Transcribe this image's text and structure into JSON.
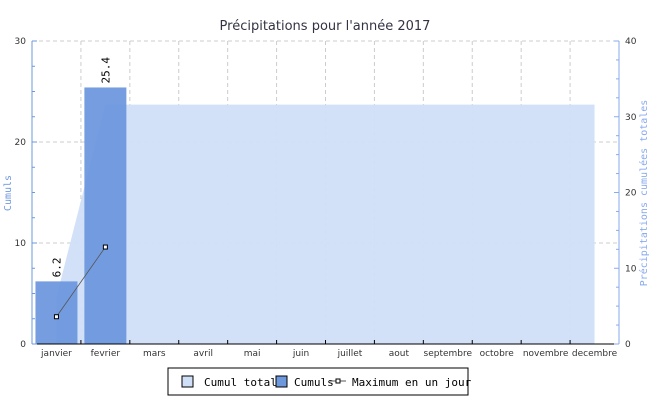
{
  "chart_data": {
    "type": "bar+area+line",
    "title": "Précipitations pour l'année 2017",
    "ylabel": "Cumuls",
    "y2label": "Précipitations cumulées totales",
    "categories": [
      "janvier",
      "fevrier",
      "mars",
      "avril",
      "mai",
      "juin",
      "juillet",
      "aout",
      "septembre",
      "octobre",
      "novembre",
      "decembre"
    ],
    "ylim": [
      0,
      30
    ],
    "y2lim": [
      0,
      40
    ],
    "yticks": [
      0,
      10,
      20,
      30
    ],
    "y2ticks": [
      0,
      10,
      20,
      30,
      40
    ],
    "grid": true,
    "legend_position": "bottom",
    "series": [
      {
        "name": "Cumul total",
        "type": "area",
        "axis": "right",
        "color": "#d0dff8",
        "values": [
          6.2,
          31.6,
          31.6,
          31.6,
          31.6,
          31.6,
          31.6,
          31.6,
          31.6,
          31.6,
          31.6,
          31.6
        ]
      },
      {
        "name": "Cumuls",
        "type": "bar",
        "axis": "left",
        "color": "#6e98de",
        "values": [
          6.2,
          25.4,
          null,
          null,
          null,
          null,
          null,
          null,
          null,
          null,
          null,
          null
        ],
        "data_labels": [
          "6.2",
          "25.4"
        ]
      },
      {
        "name": "Maximum en un jour",
        "type": "line",
        "axis": "left",
        "color": "#555555",
        "values": [
          2.7,
          9.6,
          null,
          null,
          null,
          null,
          null,
          null,
          null,
          null,
          null,
          null
        ]
      }
    ]
  }
}
